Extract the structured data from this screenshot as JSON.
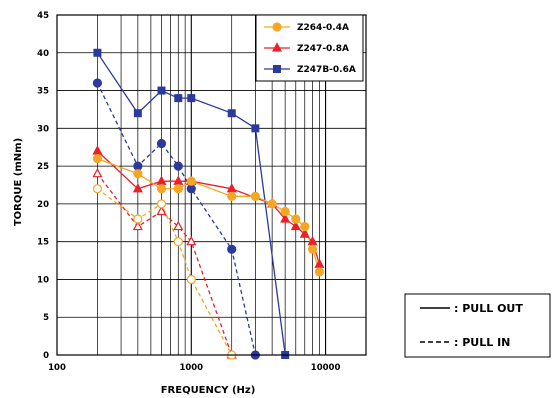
{
  "chart_data": {
    "type": "line",
    "title": "",
    "xlabel": "FREQUENCY (Hz)",
    "ylabel": "TORQUE (mNm)",
    "x_scale": "log",
    "xlim": [
      100,
      20000
    ],
    "ylim": [
      0,
      45
    ],
    "x_ticks": [
      100,
      1000,
      10000
    ],
    "x_tick_labels": [
      "100",
      "1000",
      "10000"
    ],
    "y_ticks": [
      0,
      5,
      10,
      15,
      20,
      25,
      30,
      35,
      40,
      45
    ],
    "y_tick_labels": [
      "0",
      "5",
      "10",
      "15",
      "20",
      "25",
      "30",
      "35",
      "40",
      "45"
    ],
    "grid": true,
    "legend_position": "top-right",
    "series": [
      {
        "name": "Z264-0.4A",
        "color": "#f5a623",
        "marker": "circle",
        "curve": "pull_out",
        "x": [
          200,
          400,
          600,
          800,
          1000,
          2000,
          3000,
          4000,
          5000,
          6000,
          7000,
          8000,
          9000
        ],
        "y": [
          26,
          24,
          22,
          22,
          23,
          21,
          21,
          20,
          19,
          18,
          17,
          14,
          11
        ]
      },
      {
        "name": "Z247-0.8A",
        "color": "#e8212b",
        "marker": "triangle",
        "curve": "pull_out",
        "x": [
          200,
          400,
          600,
          800,
          1000,
          2000,
          4000,
          5000,
          6000,
          7000,
          8000,
          9000
        ],
        "y": [
          27,
          22,
          23,
          23,
          23,
          22,
          20,
          18,
          17,
          16,
          15,
          12
        ]
      },
      {
        "name": "Z247B-0.6A",
        "color": "#2b3a9c",
        "marker": "square",
        "curve": "pull_out",
        "x": [
          200,
          400,
          600,
          800,
          1000,
          2000,
          3000,
          5000
        ],
        "y": [
          40,
          32,
          35,
          34,
          34,
          32,
          30,
          0
        ]
      },
      {
        "name": "",
        "color": "#f5a623",
        "marker": "circle-open",
        "curve": "pull_in",
        "x": [
          200,
          400,
          600,
          800,
          1000,
          2000
        ],
        "y": [
          22,
          18,
          20,
          15,
          10,
          0
        ]
      },
      {
        "name": "",
        "color": "#e8212b",
        "marker": "triangle-open",
        "curve": "pull_in",
        "x": [
          200,
          400,
          600,
          800,
          1000,
          2000
        ],
        "y": [
          24,
          17,
          19,
          17,
          15,
          0
        ]
      },
      {
        "name": "",
        "color": "#2b3a9c",
        "marker": "circle",
        "curve": "pull_in",
        "x": [
          200,
          400,
          600,
          800,
          1000,
          2000,
          3000
        ],
        "y": [
          36,
          25,
          28,
          25,
          22,
          14,
          0
        ]
      }
    ]
  },
  "legend": {
    "entries": [
      {
        "label": "Z264-0.4A",
        "color": "#f5a623",
        "marker": "circle"
      },
      {
        "label": "Z247-0.8A",
        "color": "#e8212b",
        "marker": "triangle"
      },
      {
        "label": "Z247B-0.6A",
        "color": "#2b3a9c",
        "marker": "square"
      }
    ]
  },
  "line_key": {
    "pull_out": ": PULL  OUT",
    "pull_in": ": PULL  IN"
  }
}
